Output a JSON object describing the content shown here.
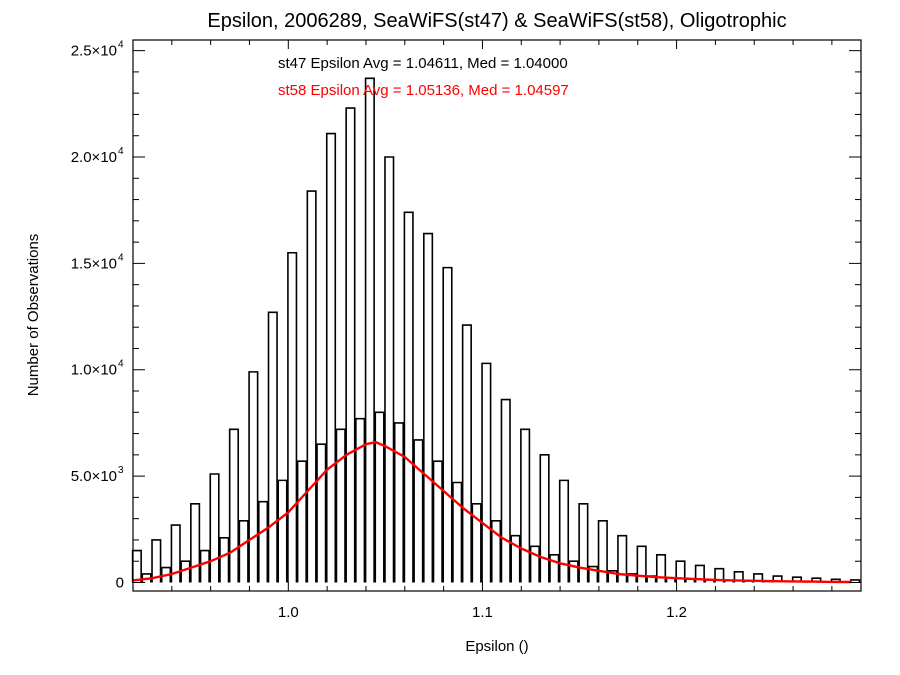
{
  "chart_data": {
    "type": "bar",
    "title": "Epsilon, 2006289, SeaWiFS(st47) & SeaWiFS(st58), Oligotrophic",
    "xlabel": "Epsilon ()",
    "ylabel": "Number of Observations",
    "xlim": [
      0.92,
      1.295
    ],
    "ylim": [
      -400,
      25500
    ],
    "x_ticks": [
      1.0,
      1.1,
      1.2
    ],
    "x_tick_labels": [
      "1.0",
      "1.1",
      "1.2"
    ],
    "y_ticks": [
      0,
      5000,
      10000,
      15000,
      20000,
      25000
    ],
    "y_tick_labels": [
      {
        "mantissa": "0",
        "exponent": ""
      },
      {
        "mantissa": "5.0×10",
        "exponent": "3"
      },
      {
        "mantissa": "1.0×10",
        "exponent": "4"
      },
      {
        "mantissa": "1.5×10",
        "exponent": "4"
      },
      {
        "mantissa": "2.0×10",
        "exponent": "4"
      },
      {
        "mantissa": "2.5×10",
        "exponent": "4"
      }
    ],
    "grid": false,
    "annotations": [
      {
        "text": "st47 Epsilon Avg = 1.04611, Med = 1.04000",
        "color": "#000000"
      },
      {
        "text": "st58 Epsilon Avg = 1.05136, Med = 1.04597",
        "color": "#ff0000"
      }
    ],
    "series": [
      {
        "color": "#000000",
        "style": "step",
        "x": [
          0.922,
          0.932,
          0.942,
          0.952,
          0.962,
          0.972,
          0.982,
          0.992,
          1.002,
          1.012,
          1.022,
          1.032,
          1.042,
          1.052,
          1.062,
          1.072,
          1.082,
          1.092,
          1.102,
          1.112,
          1.122,
          1.132,
          1.142,
          1.152,
          1.162,
          1.172,
          1.182,
          1.192,
          1.202,
          1.212,
          1.222,
          1.232,
          1.242,
          1.252,
          1.262,
          1.272,
          1.282,
          1.292
        ],
        "values": [
          1500,
          2000,
          2700,
          3700,
          5100,
          7200,
          9900,
          12700,
          15500,
          18400,
          21100,
          22300,
          23700,
          20000,
          17400,
          16400,
          14800,
          12100,
          10300,
          8600,
          7200,
          6000,
          4800,
          3700,
          2900,
          2200,
          1700,
          1300,
          1000,
          800,
          650,
          500,
          400,
          300,
          250,
          200,
          150,
          120
        ]
      },
      {
        "color": "#000000",
        "style": "step",
        "x": [
          0.927,
          0.937,
          0.947,
          0.957,
          0.967,
          0.977,
          0.987,
          0.997,
          1.007,
          1.017,
          1.027,
          1.037,
          1.047,
          1.057,
          1.067,
          1.077,
          1.087,
          1.097,
          1.107,
          1.117,
          1.127,
          1.137,
          1.147,
          1.157,
          1.167,
          1.177,
          1.187,
          1.197,
          1.207,
          1.217,
          1.227,
          1.237,
          1.247,
          1.257,
          1.267,
          1.277,
          1.287
        ],
        "values": [
          400,
          700,
          1000,
          1500,
          2100,
          2900,
          3800,
          4800,
          5700,
          6500,
          7200,
          7700,
          8000,
          7500,
          6700,
          5700,
          4700,
          3700,
          2900,
          2200,
          1700,
          1300,
          1000,
          750,
          550,
          400,
          300,
          220,
          160,
          120,
          90,
          70,
          50,
          40,
          30,
          20,
          15
        ]
      },
      {
        "color": "#ff0000",
        "style": "line",
        "x": [
          0.92,
          0.93,
          0.94,
          0.95,
          0.96,
          0.97,
          0.98,
          0.99,
          1.0,
          1.01,
          1.02,
          1.03,
          1.04,
          1.045,
          1.05,
          1.06,
          1.07,
          1.08,
          1.09,
          1.1,
          1.11,
          1.12,
          1.13,
          1.14,
          1.15,
          1.16,
          1.17,
          1.18,
          1.19,
          1.2,
          1.21,
          1.22,
          1.23,
          1.24,
          1.25,
          1.26,
          1.27,
          1.28,
          1.29
        ],
        "values": [
          100,
          200,
          400,
          700,
          1000,
          1400,
          2000,
          2600,
          3300,
          4300,
          5300,
          6000,
          6500,
          6600,
          6400,
          5900,
          5100,
          4300,
          3500,
          2800,
          2100,
          1600,
          1200,
          900,
          700,
          550,
          400,
          320,
          250,
          200,
          160,
          120,
          100,
          80,
          60,
          50,
          40,
          30,
          25
        ]
      }
    ]
  }
}
